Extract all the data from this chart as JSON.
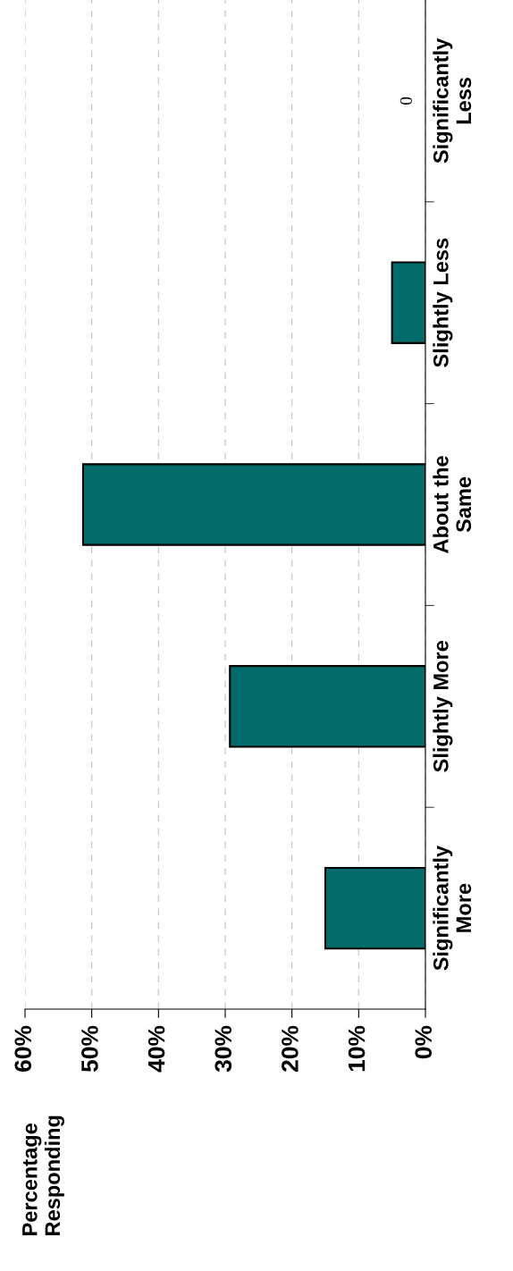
{
  "chart_data": {
    "type": "bar",
    "orientation": "horizontal",
    "ylabel": "Percentage\nResponding",
    "categories": [
      "Significantly\nLess",
      "Slightly Less",
      "About the\nSame",
      "Slightly More",
      "Significantly\nMore"
    ],
    "values": [
      0,
      5,
      51.3,
      29.3,
      15
    ],
    "value_labels": [
      "0",
      null,
      null,
      null,
      null
    ],
    "color": "#026c6a",
    "xlim": [
      60,
      0
    ],
    "xticks": [
      {
        "value": 60,
        "label": "60%"
      },
      {
        "value": 50,
        "label": "50%"
      },
      {
        "value": 40,
        "label": "40%"
      },
      {
        "value": 30,
        "label": "30%"
      },
      {
        "value": 20,
        "label": "20%"
      },
      {
        "value": 10,
        "label": "10%"
      },
      {
        "value": 0,
        "label": "0%"
      }
    ],
    "grid": "x"
  }
}
